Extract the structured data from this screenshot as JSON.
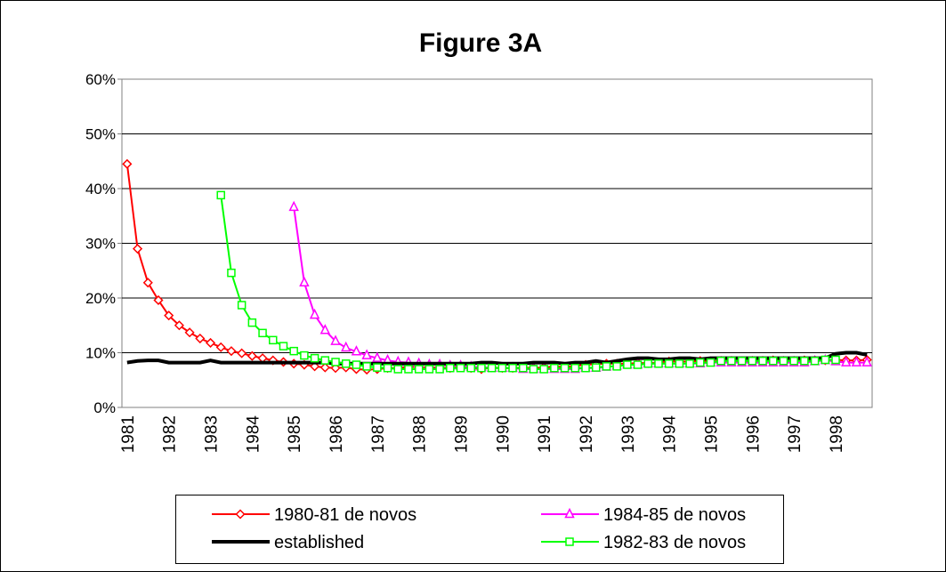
{
  "chart_data": {
    "type": "line",
    "title": "Figure 3A",
    "categories": [
      "1981",
      null,
      null,
      null,
      "1982",
      null,
      null,
      null,
      "1983",
      null,
      null,
      null,
      "1984",
      null,
      null,
      null,
      "1985",
      null,
      null,
      null,
      "1986",
      null,
      null,
      null,
      "1987",
      null,
      null,
      null,
      "1988",
      null,
      null,
      null,
      "1989",
      null,
      null,
      null,
      "1990",
      null,
      null,
      null,
      "1991",
      null,
      null,
      null,
      "1992",
      null,
      null,
      null,
      "1993",
      null,
      null,
      null,
      "1994",
      null,
      null,
      null,
      "1995",
      null,
      null,
      null,
      "1996",
      null,
      null,
      null,
      "1997",
      null,
      null,
      null,
      "1998",
      null,
      null,
      null
    ],
    "ylim": [
      0,
      60
    ],
    "yticks": [
      {
        "value": 0,
        "label": "0%"
      },
      {
        "value": 10,
        "label": "10%"
      },
      {
        "value": 20,
        "label": "20%"
      },
      {
        "value": 30,
        "label": "30%"
      },
      {
        "value": 40,
        "label": "40%"
      },
      {
        "value": 50,
        "label": "50%"
      },
      {
        "value": 60,
        "label": "60%"
      }
    ],
    "grid": true,
    "legend": "bottom",
    "series": [
      {
        "name": "1980-81 de novos",
        "color": "#ff0000",
        "marker": "diamond",
        "values": [
          44.5,
          29.0,
          22.8,
          19.6,
          16.8,
          15.0,
          13.7,
          12.6,
          11.8,
          11.0,
          10.3,
          9.9,
          9.4,
          9.0,
          8.6,
          8.3,
          8.0,
          7.8,
          7.5,
          7.3,
          7.2,
          7.3,
          7.0,
          6.9,
          7.0,
          7.2,
          7.2,
          7.4,
          7.4,
          7.3,
          7.3,
          7.2,
          7.4,
          7.2,
          7.0,
          7.3,
          7.2,
          7.2,
          7.3,
          7.2,
          7.3,
          7.5,
          7.4,
          7.6,
          7.8,
          7.9,
          8.0,
          8.0,
          8.0,
          8.1,
          8.1,
          8.2,
          8.4,
          8.4,
          8.4,
          8.5,
          8.4,
          8.5,
          8.5,
          8.4,
          8.5,
          8.5,
          8.6,
          8.5,
          8.5,
          8.6,
          8.6,
          8.6,
          8.7,
          8.6,
          8.6,
          8.7
        ]
      },
      {
        "name": "1984-85 de novos",
        "color": "#ff00ff",
        "marker": "triangle",
        "values": [
          null,
          null,
          null,
          null,
          null,
          null,
          null,
          null,
          null,
          null,
          null,
          null,
          null,
          null,
          null,
          null,
          36.6,
          22.8,
          16.9,
          14.1,
          12.1,
          10.9,
          10.2,
          9.5,
          9.0,
          8.6,
          8.3,
          8.2,
          8.0,
          7.8,
          7.8,
          7.6,
          7.6,
          7.4,
          7.4,
          7.2,
          7.2,
          7.2,
          7.0,
          7.0,
          7.0,
          7.0,
          7.0,
          7.0,
          7.2,
          7.2,
          7.4,
          7.6,
          7.8,
          7.8,
          8.0,
          8.0,
          8.0,
          8.0,
          8.0,
          8.0,
          8.2,
          8.2,
          8.2,
          8.2,
          8.2,
          8.2,
          8.2,
          8.2,
          8.2,
          8.2,
          8.4,
          8.6,
          8.4,
          8.2,
          8.2,
          8.2
        ]
      },
      {
        "name": "established",
        "color": "#000000",
        "values": [
          8.2,
          8.5,
          8.6,
          8.6,
          8.2,
          8.2,
          8.2,
          8.2,
          8.6,
          8.2,
          8.2,
          8.2,
          8.2,
          8.2,
          8.2,
          8.2,
          8.2,
          8.2,
          8.2,
          8.2,
          8.0,
          8.0,
          8.0,
          8.0,
          8.0,
          8.0,
          8.0,
          8.0,
          8.0,
          8.0,
          8.0,
          8.0,
          8.0,
          8.0,
          8.2,
          8.2,
          8.0,
          8.0,
          8.0,
          8.2,
          8.2,
          8.2,
          8.0,
          8.2,
          8.2,
          8.5,
          8.2,
          8.5,
          8.8,
          9.0,
          9.0,
          8.8,
          8.8,
          9.0,
          9.0,
          8.8,
          9.0,
          9.0,
          9.0,
          9.0,
          9.0,
          9.0,
          9.0,
          9.0,
          9.0,
          9.0,
          9.0,
          9.0,
          9.8,
          10.0,
          10.0,
          9.6
        ]
      },
      {
        "name": "1982-83 de novos",
        "color": "#00ff00",
        "marker": "square",
        "values": [
          null,
          null,
          null,
          null,
          null,
          null,
          null,
          null,
          null,
          38.8,
          24.6,
          18.7,
          15.5,
          13.6,
          12.3,
          11.2,
          10.3,
          9.5,
          9.0,
          8.6,
          8.3,
          8.0,
          7.8,
          7.5,
          7.3,
          7.2,
          7.0,
          7.0,
          7.0,
          7.0,
          7.0,
          7.2,
          7.2,
          7.2,
          7.2,
          7.2,
          7.2,
          7.2,
          7.2,
          7.0,
          7.0,
          7.2,
          7.2,
          7.2,
          7.2,
          7.3,
          7.5,
          7.5,
          7.8,
          7.8,
          8.0,
          8.0,
          8.0,
          8.0,
          8.0,
          8.2,
          8.2,
          8.5,
          8.5,
          8.5,
          8.5,
          8.5,
          8.5,
          8.5,
          8.5,
          8.5,
          8.5,
          8.7,
          8.7,
          null,
          null,
          null
        ]
      }
    ]
  }
}
